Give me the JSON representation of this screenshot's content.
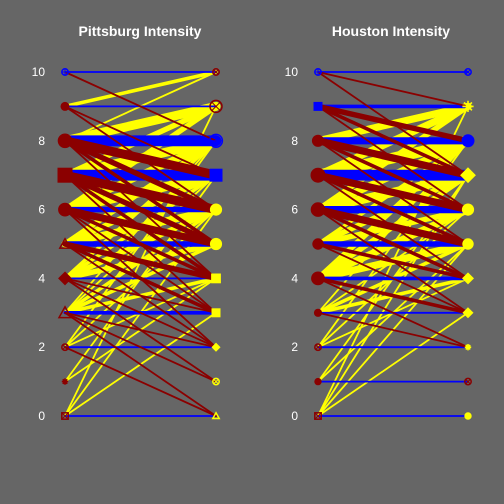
{
  "colors": {
    "background": "#666666",
    "equal_link": "#0000ff",
    "increase_link": "#ffff00",
    "decrease_link": "#8b0000",
    "text": "#ffffff"
  },
  "chart_data": [
    {
      "type": "bipartite-line",
      "title": "Pittsburg Intensity",
      "y_ticks": [
        0,
        2,
        4,
        6,
        8,
        10
      ],
      "ylim": [
        0,
        10
      ],
      "grid": false,
      "node_shapes_left": [
        "square-x",
        "star",
        "circle-x",
        "triangle",
        "diamond",
        "triangle",
        "circle",
        "square",
        "circle",
        "circle",
        "circle-plus"
      ],
      "node_shapes_right": [
        "triangle",
        "circle-x",
        "diamond",
        "square",
        "square",
        "circle",
        "circle",
        "square",
        "circle-plus",
        "circle-x",
        "circle-x"
      ],
      "left_node_weights": [
        1,
        1,
        1,
        8,
        6,
        6,
        9,
        12,
        10,
        3,
        1
      ],
      "right_node_weights": [
        1,
        1,
        1,
        3,
        4,
        7,
        7,
        8,
        9,
        8,
        1
      ],
      "links": [
        {
          "from": 10,
          "to": 10,
          "weight": 1
        },
        {
          "from": 10,
          "to": 8,
          "weight": 1
        },
        {
          "from": 9,
          "to": 9,
          "weight": 1
        },
        {
          "from": 9,
          "to": 10,
          "weight": 2
        },
        {
          "from": 9,
          "to": 7,
          "weight": 1
        },
        {
          "from": 9,
          "to": 6,
          "weight": 1
        },
        {
          "from": 8,
          "to": 8,
          "weight": 6
        },
        {
          "from": 8,
          "to": 9,
          "weight": 5
        },
        {
          "from": 8,
          "to": 10,
          "weight": 1
        },
        {
          "from": 8,
          "to": 7,
          "weight": 5
        },
        {
          "from": 8,
          "to": 6,
          "weight": 3
        },
        {
          "from": 8,
          "to": 5,
          "weight": 2
        },
        {
          "from": 8,
          "to": 4,
          "weight": 1
        },
        {
          "from": 7,
          "to": 7,
          "weight": 6
        },
        {
          "from": 7,
          "to": 8,
          "weight": 5
        },
        {
          "from": 7,
          "to": 9,
          "weight": 3
        },
        {
          "from": 7,
          "to": 6,
          "weight": 5
        },
        {
          "from": 7,
          "to": 5,
          "weight": 3
        },
        {
          "from": 7,
          "to": 4,
          "weight": 2
        },
        {
          "from": 7,
          "to": 3,
          "weight": 1
        },
        {
          "from": 6,
          "to": 6,
          "weight": 3
        },
        {
          "from": 6,
          "to": 7,
          "weight": 5
        },
        {
          "from": 6,
          "to": 8,
          "weight": 4
        },
        {
          "from": 6,
          "to": 9,
          "weight": 3
        },
        {
          "from": 6,
          "to": 5,
          "weight": 4
        },
        {
          "from": 6,
          "to": 4,
          "weight": 2
        },
        {
          "from": 6,
          "to": 3,
          "weight": 1
        },
        {
          "from": 6,
          "to": 2,
          "weight": 1
        },
        {
          "from": 5,
          "to": 5,
          "weight": 3
        },
        {
          "from": 5,
          "to": 6,
          "weight": 4
        },
        {
          "from": 5,
          "to": 7,
          "weight": 3
        },
        {
          "from": 5,
          "to": 8,
          "weight": 3
        },
        {
          "from": 5,
          "to": 4,
          "weight": 3
        },
        {
          "from": 5,
          "to": 3,
          "weight": 2
        },
        {
          "from": 5,
          "to": 2,
          "weight": 1
        },
        {
          "from": 4,
          "to": 4,
          "weight": 1
        },
        {
          "from": 4,
          "to": 5,
          "weight": 3
        },
        {
          "from": 4,
          "to": 6,
          "weight": 3
        },
        {
          "from": 4,
          "to": 7,
          "weight": 2
        },
        {
          "from": 4,
          "to": 8,
          "weight": 2
        },
        {
          "from": 4,
          "to": 3,
          "weight": 1
        },
        {
          "from": 4,
          "to": 2,
          "weight": 1
        },
        {
          "from": 4,
          "to": 1,
          "weight": 1
        },
        {
          "from": 3,
          "to": 3,
          "weight": 2
        },
        {
          "from": 3,
          "to": 4,
          "weight": 2
        },
        {
          "from": 3,
          "to": 5,
          "weight": 2
        },
        {
          "from": 3,
          "to": 6,
          "weight": 2
        },
        {
          "from": 3,
          "to": 7,
          "weight": 1
        },
        {
          "from": 3,
          "to": 8,
          "weight": 1
        },
        {
          "from": 3,
          "to": 2,
          "weight": 1
        },
        {
          "from": 3,
          "to": 1,
          "weight": 1
        },
        {
          "from": 3,
          "to": 0,
          "weight": 1
        },
        {
          "from": 2,
          "to": 2,
          "weight": 1
        },
        {
          "from": 2,
          "to": 4,
          "weight": 1
        },
        {
          "from": 2,
          "to": 6,
          "weight": 1
        },
        {
          "from": 2,
          "to": 8,
          "weight": 1
        },
        {
          "from": 2,
          "to": 0,
          "weight": 1
        },
        {
          "from": 1,
          "to": 4,
          "weight": 1
        },
        {
          "from": 1,
          "to": 7,
          "weight": 1
        },
        {
          "from": 0,
          "to": 0,
          "weight": 1
        },
        {
          "from": 0,
          "to": 3,
          "weight": 1
        },
        {
          "from": 0,
          "to": 6,
          "weight": 1
        },
        {
          "from": 0,
          "to": 9,
          "weight": 1
        }
      ]
    },
    {
      "type": "bipartite-line",
      "title": "Houston Intensity",
      "y_ticks": [
        0,
        2,
        4,
        6,
        8,
        10
      ],
      "ylim": [
        0,
        10
      ],
      "grid": false,
      "node_shapes_left": [
        "square-x",
        "circle",
        "circle-x",
        "circle",
        "circle",
        "circle",
        "circle",
        "circle",
        "circle",
        "square",
        "circle-plus"
      ],
      "node_shapes_right": [
        "circle",
        "circle-x",
        "star",
        "diamond",
        "diamond",
        "circle",
        "circle",
        "diamond",
        "circle",
        "star",
        "circle-x"
      ],
      "left_node_weights": [
        1,
        1,
        1,
        2,
        9,
        6,
        10,
        11,
        7,
        3,
        1
      ],
      "right_node_weights": [
        1,
        1,
        1,
        3,
        4,
        6,
        7,
        8,
        8,
        7,
        1
      ],
      "links": [
        {
          "from": 10,
          "to": 10,
          "weight": 1
        },
        {
          "from": 10,
          "to": 9,
          "weight": 1
        },
        {
          "from": 10,
          "to": 7,
          "weight": 1
        },
        {
          "from": 9,
          "to": 9,
          "weight": 2
        },
        {
          "from": 9,
          "to": 8,
          "weight": 3
        },
        {
          "from": 9,
          "to": 7,
          "weight": 2
        },
        {
          "from": 9,
          "to": 6,
          "weight": 1
        },
        {
          "from": 8,
          "to": 8,
          "weight": 4
        },
        {
          "from": 8,
          "to": 9,
          "weight": 4
        },
        {
          "from": 8,
          "to": 7,
          "weight": 4
        },
        {
          "from": 8,
          "to": 6,
          "weight": 2
        },
        {
          "from": 8,
          "to": 5,
          "weight": 1
        },
        {
          "from": 7,
          "to": 7,
          "weight": 6
        },
        {
          "from": 7,
          "to": 8,
          "weight": 6
        },
        {
          "from": 7,
          "to": 9,
          "weight": 4
        },
        {
          "from": 7,
          "to": 6,
          "weight": 4
        },
        {
          "from": 7,
          "to": 5,
          "weight": 2
        },
        {
          "from": 7,
          "to": 4,
          "weight": 1
        },
        {
          "from": 6,
          "to": 6,
          "weight": 4
        },
        {
          "from": 6,
          "to": 7,
          "weight": 5
        },
        {
          "from": 6,
          "to": 8,
          "weight": 4
        },
        {
          "from": 6,
          "to": 9,
          "weight": 3
        },
        {
          "from": 6,
          "to": 5,
          "weight": 4
        },
        {
          "from": 6,
          "to": 4,
          "weight": 2
        },
        {
          "from": 6,
          "to": 3,
          "weight": 1
        },
        {
          "from": 5,
          "to": 5,
          "weight": 3
        },
        {
          "from": 5,
          "to": 6,
          "weight": 3
        },
        {
          "from": 5,
          "to": 7,
          "weight": 3
        },
        {
          "from": 5,
          "to": 8,
          "weight": 2
        },
        {
          "from": 5,
          "to": 4,
          "weight": 2
        },
        {
          "from": 5,
          "to": 3,
          "weight": 1
        },
        {
          "from": 4,
          "to": 4,
          "weight": 2
        },
        {
          "from": 4,
          "to": 5,
          "weight": 4
        },
        {
          "from": 4,
          "to": 6,
          "weight": 4
        },
        {
          "from": 4,
          "to": 7,
          "weight": 3
        },
        {
          "from": 4,
          "to": 8,
          "weight": 3
        },
        {
          "from": 4,
          "to": 3,
          "weight": 2
        },
        {
          "from": 4,
          "to": 2,
          "weight": 1
        },
        {
          "from": 3,
          "to": 3,
          "weight": 1
        },
        {
          "from": 3,
          "to": 4,
          "weight": 2
        },
        {
          "from": 3,
          "to": 5,
          "weight": 2
        },
        {
          "from": 3,
          "to": 6,
          "weight": 1
        },
        {
          "from": 3,
          "to": 8,
          "weight": 1
        },
        {
          "from": 3,
          "to": 2,
          "weight": 1
        },
        {
          "from": 2,
          "to": 2,
          "weight": 1
        },
        {
          "from": 2,
          "to": 4,
          "weight": 1
        },
        {
          "from": 2,
          "to": 6,
          "weight": 1
        },
        {
          "from": 2,
          "to": 8,
          "weight": 1
        },
        {
          "from": 1,
          "to": 1,
          "weight": 1
        },
        {
          "from": 1,
          "to": 5,
          "weight": 1
        },
        {
          "from": 1,
          "to": 7,
          "weight": 1
        },
        {
          "from": 0,
          "to": 0,
          "weight": 1
        },
        {
          "from": 0,
          "to": 3,
          "weight": 1
        },
        {
          "from": 0,
          "to": 5,
          "weight": 1
        },
        {
          "from": 0,
          "to": 7,
          "weight": 1
        },
        {
          "from": 0,
          "to": 9,
          "weight": 1
        }
      ]
    }
  ]
}
